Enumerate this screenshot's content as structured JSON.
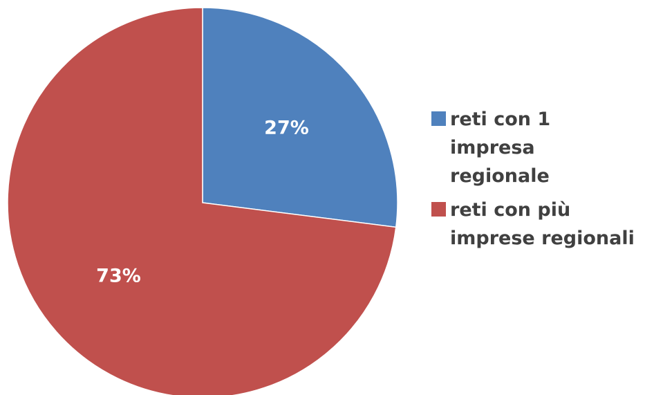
{
  "chart_data": {
    "type": "pie",
    "title": "",
    "start_angle_deg": 0,
    "direction": "clockwise",
    "slices": [
      {
        "name": "reti con 1\nimpresa\nregionale",
        "value": 27,
        "label": "27%",
        "color": "#4F81BD"
      },
      {
        "name": "reti con più\nimprese regionali",
        "value": 73,
        "label": "73%",
        "color": "#C0504D"
      }
    ],
    "legend_position": "right"
  }
}
